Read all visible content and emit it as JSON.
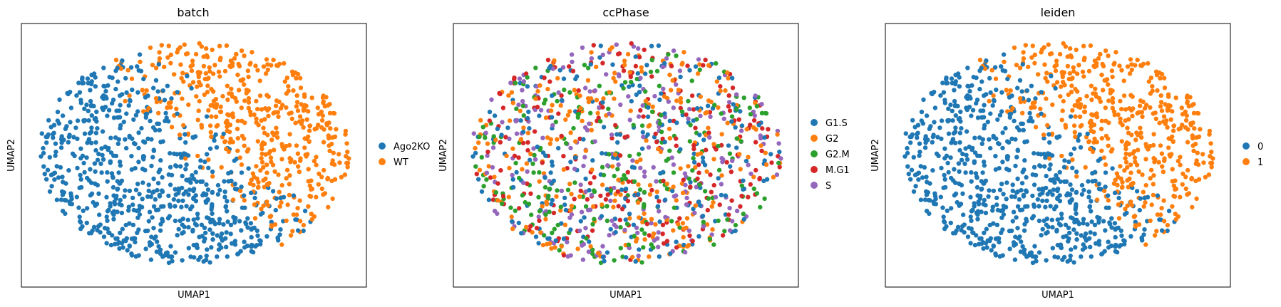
{
  "figure": {
    "background": "#ffffff"
  },
  "chart_data": [
    {
      "type": "scatter",
      "title": "batch",
      "xlabel": "UMAP1",
      "ylabel": "UMAP2",
      "xticks": [],
      "yticks": [],
      "legend_placement": "right",
      "marker": "filled circle",
      "point_count_approx": 1200,
      "series": [
        {
          "name": "Ago2KO",
          "color": "#1f77b4",
          "region": "lower and left part of the embedding"
        },
        {
          "name": "WT",
          "color": "#ff7f0e",
          "region": "upper-right part of the embedding"
        }
      ]
    },
    {
      "type": "scatter",
      "title": "ccPhase",
      "xlabel": "UMAP1",
      "ylabel": "UMAP2",
      "xticks": [],
      "yticks": [],
      "legend_placement": "right",
      "marker": "filled circle",
      "point_count_approx": 1200,
      "series": [
        {
          "name": "G1.S",
          "color": "#1f77b4",
          "region": "mixed throughout"
        },
        {
          "name": "G2",
          "color": "#ff7f0e",
          "region": "mixed throughout"
        },
        {
          "name": "G2.M",
          "color": "#2ca02c",
          "region": "mixed throughout"
        },
        {
          "name": "M.G1",
          "color": "#d62728",
          "region": "mixed throughout"
        },
        {
          "name": "S",
          "color": "#9467bd",
          "region": "mixed throughout"
        }
      ]
    },
    {
      "type": "scatter",
      "title": "leiden",
      "xlabel": "UMAP1",
      "ylabel": "UMAP2",
      "xticks": [],
      "yticks": [],
      "legend_placement": "right",
      "marker": "filled circle",
      "point_count_approx": 1200,
      "series": [
        {
          "name": "0",
          "color": "#1f77b4",
          "region": "lower and left part of the embedding"
        },
        {
          "name": "1",
          "color": "#ff7f0e",
          "region": "upper-right part of the embedding"
        }
      ]
    }
  ]
}
